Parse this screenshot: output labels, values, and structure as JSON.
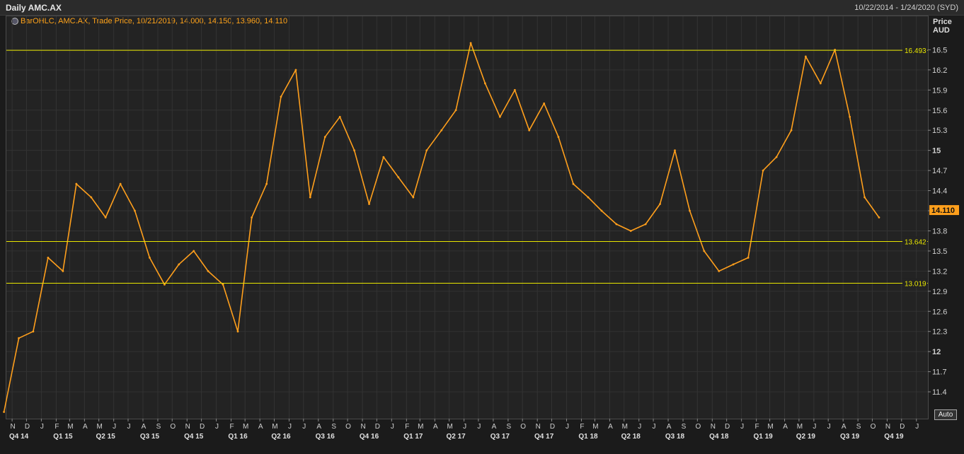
{
  "header": {
    "title": "Daily AMC.AX",
    "date_range": "10/22/2014 - 1/24/2020 (SYD)"
  },
  "legend": {
    "text": "BarOHLC, AMC.AX, Trade Price, 10/21/2019, 14.000, 14.150, 13.960, 14.110"
  },
  "y_axis": {
    "label_line1": "Price",
    "label_line2": "AUD"
  },
  "auto_button": "Auto",
  "colors": {
    "price": "#ff9f1c",
    "hline": "#e8e600",
    "last_badge": "#ff9f1c",
    "grid": "#333333"
  },
  "chart_data": {
    "type": "line",
    "title": "Daily AMC.AX",
    "series": [
      {
        "name": "AMC.AX",
        "x": [
          "2014-10",
          "2014-11",
          "2014-12",
          "2015-01",
          "2015-02",
          "2015-03",
          "2015-04",
          "2015-05",
          "2015-06",
          "2015-07",
          "2015-08",
          "2015-09",
          "2015-10",
          "2015-11",
          "2015-12",
          "2016-01",
          "2016-02",
          "2016-03",
          "2016-04",
          "2016-05",
          "2016-06",
          "2016-07",
          "2016-08",
          "2016-09",
          "2016-10",
          "2016-11",
          "2016-12",
          "2017-01",
          "2017-02",
          "2017-03",
          "2017-04",
          "2017-05",
          "2017-06",
          "2017-07",
          "2017-08",
          "2017-09",
          "2017-10",
          "2017-11",
          "2017-12",
          "2018-01",
          "2018-02",
          "2018-03",
          "2018-04",
          "2018-05",
          "2018-06",
          "2018-07",
          "2018-08",
          "2018-09",
          "2018-10",
          "2018-11",
          "2018-12",
          "2019-01",
          "2019-02",
          "2019-03",
          "2019-04",
          "2019-05",
          "2019-06",
          "2019-07",
          "2019-08",
          "2019-09",
          "2019-10"
        ],
        "values": [
          11.1,
          12.2,
          12.3,
          13.4,
          13.2,
          14.5,
          14.3,
          14.0,
          14.5,
          14.1,
          13.4,
          13.0,
          13.3,
          13.5,
          13.2,
          13.0,
          12.3,
          14.0,
          14.5,
          15.8,
          16.2,
          14.3,
          15.2,
          15.5,
          15.0,
          14.2,
          14.9,
          14.6,
          14.3,
          15.0,
          15.3,
          15.6,
          16.6,
          16.0,
          15.5,
          15.9,
          15.3,
          15.7,
          15.2,
          14.5,
          14.3,
          14.1,
          13.9,
          13.8,
          13.9,
          14.2,
          15.0,
          14.1,
          13.5,
          13.2,
          13.3,
          13.4,
          14.7,
          14.9,
          15.3,
          16.4,
          16.0,
          16.5,
          15.5,
          14.3,
          14.0
        ]
      }
    ],
    "ylim": [
      11.0,
      17.0
    ],
    "y_ticks": [
      "11.4",
      "11.7",
      "12",
      "12.3",
      "12.6",
      "12.9",
      "13.2",
      "13.5",
      "13.8",
      "14.1",
      "14.4",
      "14.7",
      "15",
      "15.3",
      "15.6",
      "15.9",
      "16.2",
      "16.5"
    ],
    "x_ticks": [
      {
        "date": "2014-11-01",
        "label": "N"
      },
      {
        "date": "2014-12-01",
        "label": "D"
      },
      {
        "date": "2015-01-01",
        "label": "J"
      },
      {
        "date": "2015-02-01",
        "label": "F"
      },
      {
        "date": "2015-03-01",
        "label": "M"
      },
      {
        "date": "2015-04-01",
        "label": "A"
      },
      {
        "date": "2015-05-01",
        "label": "M"
      },
      {
        "date": "2015-06-01",
        "label": "J"
      },
      {
        "date": "2015-07-01",
        "label": "J"
      },
      {
        "date": "2015-08-01",
        "label": "A"
      },
      {
        "date": "2015-09-01",
        "label": "S"
      },
      {
        "date": "2015-10-01",
        "label": "O"
      },
      {
        "date": "2015-11-01",
        "label": "N"
      },
      {
        "date": "2015-12-01",
        "label": "D"
      },
      {
        "date": "2016-01-01",
        "label": "J"
      },
      {
        "date": "2016-02-01",
        "label": "F"
      },
      {
        "date": "2016-03-01",
        "label": "M"
      },
      {
        "date": "2016-04-01",
        "label": "A"
      },
      {
        "date": "2016-05-01",
        "label": "M"
      },
      {
        "date": "2016-06-01",
        "label": "J"
      },
      {
        "date": "2016-07-01",
        "label": "J"
      },
      {
        "date": "2016-08-01",
        "label": "A"
      },
      {
        "date": "2016-09-01",
        "label": "S"
      },
      {
        "date": "2016-10-01",
        "label": "O"
      },
      {
        "date": "2016-11-01",
        "label": "N"
      },
      {
        "date": "2016-12-01",
        "label": "D"
      },
      {
        "date": "2017-01-01",
        "label": "J"
      },
      {
        "date": "2017-02-01",
        "label": "F"
      },
      {
        "date": "2017-03-01",
        "label": "M"
      },
      {
        "date": "2017-04-01",
        "label": "A"
      },
      {
        "date": "2017-05-01",
        "label": "M"
      },
      {
        "date": "2017-06-01",
        "label": "J"
      },
      {
        "date": "2017-07-01",
        "label": "J"
      },
      {
        "date": "2017-08-01",
        "label": "A"
      },
      {
        "date": "2017-09-01",
        "label": "S"
      },
      {
        "date": "2017-10-01",
        "label": "O"
      },
      {
        "date": "2017-11-01",
        "label": "N"
      },
      {
        "date": "2017-12-01",
        "label": "D"
      },
      {
        "date": "2018-01-01",
        "label": "J"
      },
      {
        "date": "2018-02-01",
        "label": "F"
      },
      {
        "date": "2018-03-01",
        "label": "M"
      },
      {
        "date": "2018-04-01",
        "label": "A"
      },
      {
        "date": "2018-05-01",
        "label": "M"
      },
      {
        "date": "2018-06-01",
        "label": "J"
      },
      {
        "date": "2018-07-01",
        "label": "J"
      },
      {
        "date": "2018-08-01",
        "label": "A"
      },
      {
        "date": "2018-09-01",
        "label": "S"
      },
      {
        "date": "2018-10-01",
        "label": "O"
      },
      {
        "date": "2018-11-01",
        "label": "N"
      },
      {
        "date": "2018-12-01",
        "label": "D"
      },
      {
        "date": "2019-01-01",
        "label": "J"
      },
      {
        "date": "2019-02-01",
        "label": "F"
      },
      {
        "date": "2019-03-01",
        "label": "M"
      },
      {
        "date": "2019-04-01",
        "label": "A"
      },
      {
        "date": "2019-05-01",
        "label": "M"
      },
      {
        "date": "2019-06-01",
        "label": "J"
      },
      {
        "date": "2019-07-01",
        "label": "J"
      },
      {
        "date": "2019-08-01",
        "label": "A"
      },
      {
        "date": "2019-09-01",
        "label": "S"
      },
      {
        "date": "2019-10-01",
        "label": "O"
      },
      {
        "date": "2019-11-01",
        "label": "N"
      },
      {
        "date": "2019-12-01",
        "label": "D"
      },
      {
        "date": "2020-01-01",
        "label": "J"
      }
    ],
    "quarter_labels": [
      {
        "date": "2014-11-15",
        "label": "Q4 14"
      },
      {
        "date": "2015-02-15",
        "label": "Q1 15"
      },
      {
        "date": "2015-05-15",
        "label": "Q2 15"
      },
      {
        "date": "2015-08-15",
        "label": "Q3 15"
      },
      {
        "date": "2015-11-15",
        "label": "Q4 15"
      },
      {
        "date": "2016-02-15",
        "label": "Q1 16"
      },
      {
        "date": "2016-05-15",
        "label": "Q2 16"
      },
      {
        "date": "2016-08-15",
        "label": "Q3 16"
      },
      {
        "date": "2016-11-15",
        "label": "Q4 16"
      },
      {
        "date": "2017-02-15",
        "label": "Q1 17"
      },
      {
        "date": "2017-05-15",
        "label": "Q2 17"
      },
      {
        "date": "2017-08-15",
        "label": "Q3 17"
      },
      {
        "date": "2017-11-15",
        "label": "Q4 17"
      },
      {
        "date": "2018-02-15",
        "label": "Q1 18"
      },
      {
        "date": "2018-05-15",
        "label": "Q2 18"
      },
      {
        "date": "2018-08-15",
        "label": "Q3 18"
      },
      {
        "date": "2018-11-15",
        "label": "Q4 18"
      },
      {
        "date": "2019-02-15",
        "label": "Q1 19"
      },
      {
        "date": "2019-05-15",
        "label": "Q2 19"
      },
      {
        "date": "2019-08-15",
        "label": "Q3 19"
      },
      {
        "date": "2019-11-15",
        "label": "Q4 19"
      }
    ],
    "hlines": [
      {
        "value": 16.493,
        "label": "16.493"
      },
      {
        "value": 13.642,
        "label": "13.642"
      },
      {
        "value": 13.019,
        "label": "13.019"
      }
    ],
    "last_value": {
      "value": 14.11,
      "label": "14.110"
    },
    "grid": true
  }
}
